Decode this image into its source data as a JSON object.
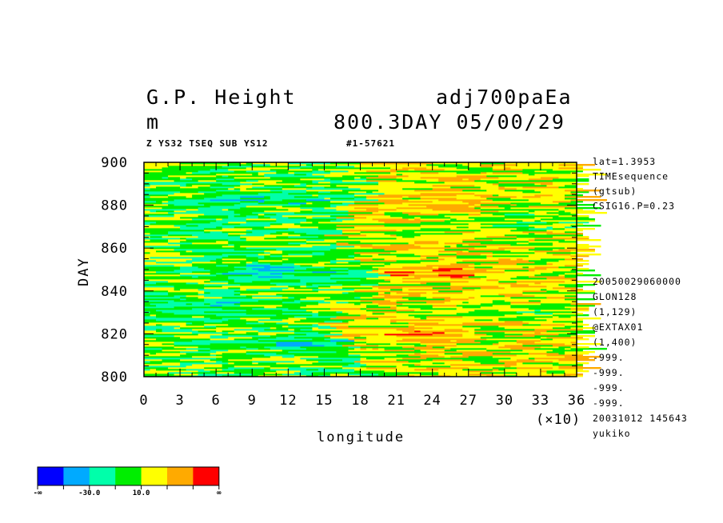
{
  "header": {
    "var_name": "G.P. Height",
    "exp_name": "adj700paEa",
    "unit": "m",
    "time_label": "800.3DAY 05/00/29",
    "sub_left": "Z YS32 TSEQ SUB YS12",
    "sub_right": "#1-57621"
  },
  "side_info": {
    "top": [
      "lat=1.3953",
      "TIMEsequence",
      "(gtsub)",
      "CSIG16.P=0.23"
    ],
    "bottom": [
      "20050029060000",
      "GLON128",
      "(1,129)",
      "@EXTAX01",
      "(1,400)",
      "-999.",
      "-999.",
      "-999.",
      "-999.",
      "20031012 145643",
      "yukiko"
    ]
  },
  "colorbar": {
    "colors": [
      "#0000ff",
      "#00aaff",
      "#00ffaa",
      "#00ee00",
      "#ffff00",
      "#ffaa00",
      "#ff0000"
    ],
    "labels": [
      "-∞",
      "-30.0",
      "10.0",
      "∞"
    ]
  },
  "chart_data": {
    "type": "heatmap",
    "xlabel": "longitude",
    "ylabel": "DAY",
    "x_multiplier": "(×10)",
    "xlim": [
      0,
      36
    ],
    "ylim": [
      800,
      900
    ],
    "x_ticks": [
      "0",
      "3",
      "6",
      "9",
      "12",
      "15",
      "18",
      "21",
      "24",
      "27",
      "30",
      "33",
      "36"
    ],
    "y_ticks": [
      "800",
      "820",
      "840",
      "860",
      "880",
      "900"
    ],
    "field_description_levels": {
      "west_of_18": "mostly 10 to -30 (green/cyan) with bands below -30 near days 815, 848, 882",
      "east_of_18": "mostly above 10 (yellow/orange) with red patches near days 815-825, 845-850, 900"
    }
  }
}
